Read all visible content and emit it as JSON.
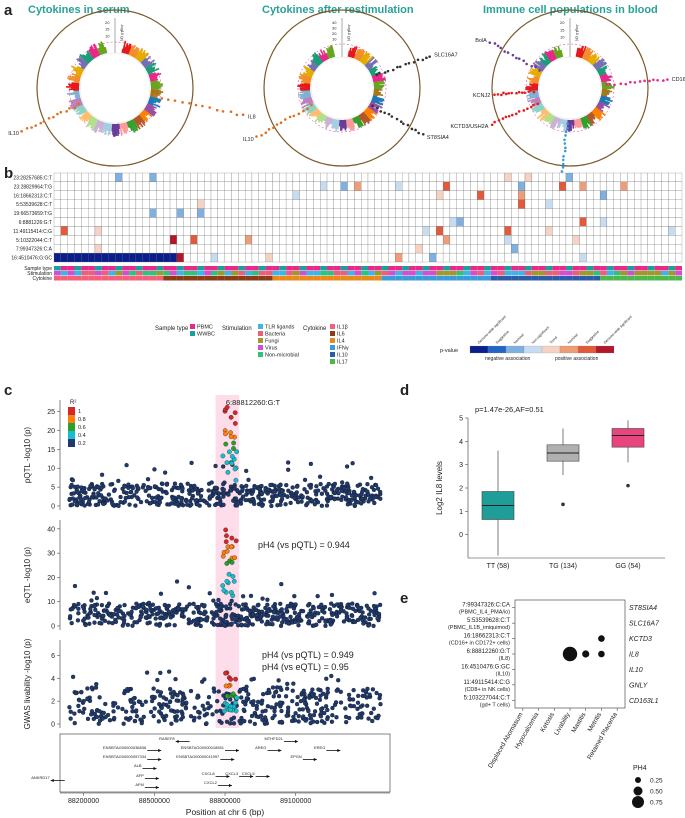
{
  "panels": {
    "a": "a",
    "b": "b",
    "c": "c",
    "d": "d",
    "e": "e"
  },
  "a": {
    "titles": [
      "Cytokines in serum",
      "Cytokines after restimulation",
      "Immune cell populations in blood"
    ],
    "y_label": "-log10 (p)",
    "circles": [
      {
        "ticks": [
          "20",
          "15",
          "10"
        ],
        "genes": [
          "IL8",
          "IL10"
        ]
      },
      {
        "ticks": [
          "40",
          "30",
          "20",
          "10"
        ],
        "genes": [
          "SLC16A7",
          "ST8SIA4",
          "IL10"
        ]
      },
      {
        "ticks": [
          "20",
          "15",
          "10"
        ],
        "genes": [
          "BolA",
          "KCNJ2",
          "KCTD3/USH2A",
          "CD163L1",
          "GNLY"
        ]
      }
    ],
    "colors": [
      "#e41a1c",
      "#f28e2b",
      "#e6ab02",
      "#7570b3",
      "#1b9e77",
      "#e7298a",
      "#66a61e",
      "#a6761d",
      "#1f78b4",
      "#984ea3",
      "#ff7f00",
      "#b15928",
      "#33a02c",
      "#fb9a99",
      "#6a3d9a",
      "#a6cee3",
      "#cab2d6",
      "#b2df8a",
      "#fdbf6f",
      "#8dd3c7",
      "#bc80bd",
      "#80b1d3"
    ]
  },
  "b": {
    "rows": [
      "23:28257685:C:T",
      "23:28829964:T:G",
      "16:18662313:C:T",
      "5:53539628:C:T",
      "19:66573659:T:G",
      "6:8881226:G:T",
      "11:49115414:C:G",
      "5:10322044:C:T",
      "7:99347326:C:A",
      "16:4510476:G:GC"
    ],
    "annot_labels": [
      "Sample type",
      "Stimulation",
      "Cytokine"
    ],
    "legend": {
      "sample_type_title": "Sample type",
      "sample_types": [
        {
          "label": "PBMC",
          "color": "#e7298a"
        },
        {
          "label": "WWBC",
          "color": "#1b9e9e"
        }
      ],
      "stimulation_title": "Stimulation",
      "stimulations": [
        {
          "label": "TLR ligands",
          "color": "#3db5e6"
        },
        {
          "label": "Bacteria",
          "color": "#e8607a"
        },
        {
          "label": "Fungi",
          "color": "#9c9a2a"
        },
        {
          "label": "Virus",
          "color": "#d14fd1"
        },
        {
          "label": "Non-microbial",
          "color": "#2ec27e"
        }
      ],
      "cytokine_title": "Cytokine",
      "cytokines": [
        {
          "label": "IL1β",
          "color": "#f2607a"
        },
        {
          "label": "IL6",
          "color": "#8a3c14"
        },
        {
          "label": "IL4",
          "color": "#e88a1a"
        },
        {
          "label": "IFNγ",
          "color": "#3a9bd9"
        },
        {
          "label": "IL10",
          "color": "#2c5ba8"
        },
        {
          "label": "IL17",
          "color": "#4cb84c"
        }
      ],
      "pvalue_title": "p-value",
      "pvalue_ticks": [
        "Genome-wide significant",
        "Suggestive",
        "Nominal",
        "Non-significant",
        "Trend",
        "Nominal",
        "Suggestive",
        "Genome-wide significant"
      ],
      "neg": "negative association",
      "pos": "positive association",
      "pvalue_colors": [
        "#0a1f8c",
        "#2364c9",
        "#7fb0e0",
        "#c6dcf0",
        "#f5d2c4",
        "#ef9c78",
        "#e25a3b",
        "#b2182b"
      ]
    }
  },
  "c": {
    "lead_snp": "6:88812260:G:T",
    "r2_title": "R²",
    "r2_ticks": [
      "1",
      "0.8",
      "0.6",
      "0.4",
      "0.2"
    ],
    "r2_colors": [
      "#d62728",
      "#ff7f0e",
      "#2ca02c",
      "#17becf",
      "#1f3a6e"
    ],
    "tracks": [
      {
        "ylabel": "pQTL -log10 (p)",
        "ticks": [
          "0",
          "5",
          "10",
          "15",
          "20",
          "25"
        ],
        "max": 27
      },
      {
        "ylabel": "eQTL -log10 (p)",
        "ticks": [
          "0",
          "10",
          "20",
          "30",
          "40"
        ],
        "max": 42,
        "annot": "pH4 (vs pQTL) = 0.944"
      },
      {
        "ylabel": "GWAS livability -log10 (p)",
        "ticks": [
          "0",
          "2",
          "4",
          "6"
        ],
        "max": 7,
        "annot1": "pH4 (vs pQTL) = 0.949",
        "annot2": "pH4 (vs eQTL) = 0.95"
      }
    ],
    "genes": [
      {
        "label": "RASEF8",
        "dir": "left"
      },
      {
        "label": "MTHFD2L",
        "dir": "right"
      },
      {
        "label": "ENSBTAG00000036836",
        "dir": "right"
      },
      {
        "label": "ENSBTAG00000018551",
        "dir": "right"
      },
      {
        "label": "EREG",
        "dir": "right"
      },
      {
        "label": "ENSBTAG00000057334",
        "dir": "right"
      },
      {
        "label": "EPGN",
        "dir": "right"
      },
      {
        "label": "AREG",
        "dir": "right"
      },
      {
        "label": "ENSBTAG00000011997",
        "dir": "right"
      },
      {
        "label": "ALB",
        "dir": "right"
      },
      {
        "label": "ANKRD17",
        "dir": "left"
      },
      {
        "label": "AFP",
        "dir": "right"
      },
      {
        "label": "CXCL8",
        "dir": "right"
      },
      {
        "label": "CXCL3",
        "dir": "right"
      },
      {
        "label": "CXCL5",
        "dir": "right"
      },
      {
        "label": "AFM",
        "dir": "right"
      },
      {
        "label": "CXCL2",
        "dir": "right"
      }
    ],
    "x_ticks": [
      "88200000",
      "88500000",
      "88800000",
      "89100000"
    ],
    "x_label": "Position at chr 6 (bp)"
  },
  "d": {
    "annot": "p=1.47e-26,AF=0.51",
    "ylabel": "Log2 IL8 levels",
    "y_ticks": [
      "0",
      "1",
      "2",
      "3",
      "4",
      "5"
    ],
    "chart_data": {
      "type": "box",
      "categories": [
        "TT (58)",
        "TG (134)",
        "GG (54)"
      ],
      "colors": [
        "#1f9e99",
        "#b0b0b0",
        "#e8457f"
      ],
      "boxes": [
        {
          "min": -0.9,
          "q1": 0.65,
          "median": 1.25,
          "q3": 1.85,
          "max": 3.6,
          "outliers": []
        },
        {
          "min": 2.55,
          "q1": 3.15,
          "median": 3.5,
          "q3": 3.85,
          "max": 4.55,
          "outliers": [
            1.3
          ]
        },
        {
          "min": 3.1,
          "q1": 3.75,
          "median": 4.25,
          "q3": 4.55,
          "max": 4.9,
          "outliers": [
            2.1
          ]
        }
      ],
      "ylim": [
        -1,
        5
      ],
      "ylabel": "Log2 IL8 levels"
    }
  },
  "e": {
    "rows": [
      {
        "left1": "7:99347326:C:CA",
        "left2": "(PBMC_IL4_PMA/io)",
        "right": "ST8SIA4"
      },
      {
        "left1": "5:53539628:C:T",
        "left2": "(PBMC_IL1B_imiquimod)",
        "right": "SLC16A7"
      },
      {
        "left1": "16:18662313:C:T",
        "left2": "(CD16+ in CD172+ cells)",
        "right": "KCTD3"
      },
      {
        "left1": "6:88812260:G:T",
        "left2": "(IL8)",
        "right": "IL8"
      },
      {
        "left1": "16:4510476:G:GC",
        "left2": "(IL10)",
        "right": "IL10"
      },
      {
        "left1": "11:49115414:C:G",
        "left2": "(CD8+ in NK cells)",
        "right": "GNLY"
      },
      {
        "left1": "5:103227044:C:T",
        "left2": "(gd+ T cells)",
        "right": "CD163L1"
      }
    ],
    "columns": [
      "Displaced Abomasum",
      "Hypocalcemia",
      "Ketosis",
      "Livability",
      "Mastitis",
      "Metritis",
      "Retained Placenta"
    ],
    "chart_data": {
      "type": "scatter",
      "points": [
        {
          "row": "IL8",
          "col": "Livability",
          "ph4": 0.95
        },
        {
          "row": "IL8",
          "col": "Mastitis",
          "ph4": 0.35
        },
        {
          "row": "KCTD3",
          "col": "Metritis",
          "ph4": 0.3
        },
        {
          "row": "IL8",
          "col": "Metritis",
          "ph4": 0.3
        }
      ]
    },
    "legend_title": "PH4",
    "legend": [
      "0.25",
      "0.50",
      "0.75"
    ]
  }
}
